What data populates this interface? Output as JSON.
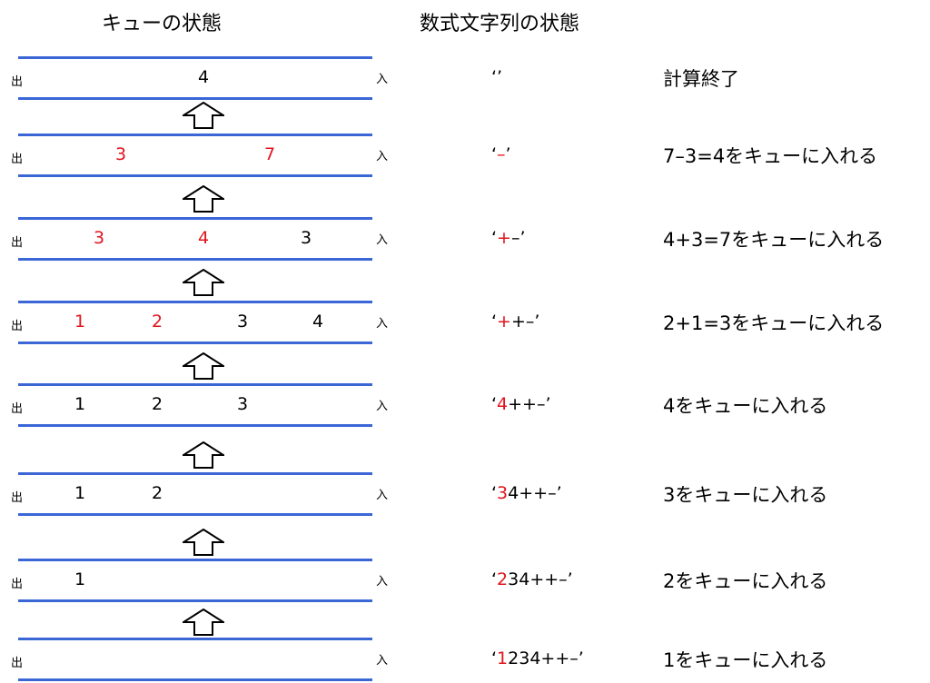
{
  "headers": {
    "queue": "キューの状態",
    "expression": "数式文字列の状態"
  },
  "labels": {
    "out": "出",
    "in": "入"
  },
  "colors": {
    "line": "#3a66d6",
    "highlight": "#e0141e"
  },
  "rows": [
    {
      "items": [
        {
          "v": "4",
          "r": false
        }
      ],
      "expr": [
        {
          "t": "‘’",
          "r": false
        }
      ],
      "desc": "計算終了"
    },
    {
      "items": [
        {
          "v": "3",
          "r": true
        },
        {
          "v": "7",
          "r": true
        }
      ],
      "expr": [
        {
          "t": "‘",
          "r": false
        },
        {
          "t": "–",
          "r": true
        },
        {
          "t": "’",
          "r": false
        }
      ],
      "desc": "7–3=4をキューに入れる"
    },
    {
      "items": [
        {
          "v": "3",
          "r": true
        },
        {
          "v": "4",
          "r": true
        },
        {
          "v": "3",
          "r": false
        }
      ],
      "expr": [
        {
          "t": "‘",
          "r": false
        },
        {
          "t": "+",
          "r": true
        },
        {
          "t": "–’",
          "r": false
        }
      ],
      "desc": "4+3=7をキューに入れる"
    },
    {
      "items": [
        {
          "v": "1",
          "r": true
        },
        {
          "v": "2",
          "r": true
        },
        {
          "v": "3",
          "r": false
        },
        {
          "v": "4",
          "r": false
        }
      ],
      "expr": [
        {
          "t": "‘",
          "r": false
        },
        {
          "t": "+",
          "r": true
        },
        {
          "t": "+–’",
          "r": false
        }
      ],
      "desc": "2+1=3をキューに入れる"
    },
    {
      "items": [
        {
          "v": "1",
          "r": false
        },
        {
          "v": "2",
          "r": false
        },
        {
          "v": "3",
          "r": false
        }
      ],
      "expr": [
        {
          "t": "‘",
          "r": false
        },
        {
          "t": "4",
          "r": true
        },
        {
          "t": "++–’",
          "r": false
        }
      ],
      "desc": "4をキューに入れる"
    },
    {
      "items": [
        {
          "v": "1",
          "r": false
        },
        {
          "v": "2",
          "r": false
        }
      ],
      "expr": [
        {
          "t": "‘",
          "r": false
        },
        {
          "t": "3",
          "r": true
        },
        {
          "t": "4++–’",
          "r": false
        }
      ],
      "desc": "3をキューに入れる"
    },
    {
      "items": [
        {
          "v": "1",
          "r": false
        }
      ],
      "expr": [
        {
          "t": "‘",
          "r": false
        },
        {
          "t": "2",
          "r": true
        },
        {
          "t": "34++–’",
          "r": false
        }
      ],
      "desc": "2をキューに入れる"
    },
    {
      "items": [],
      "expr": [
        {
          "t": "‘",
          "r": false
        },
        {
          "t": "1",
          "r": true
        },
        {
          "t": "234++–’",
          "r": false
        }
      ],
      "desc": "1をキューに入れる"
    }
  ]
}
